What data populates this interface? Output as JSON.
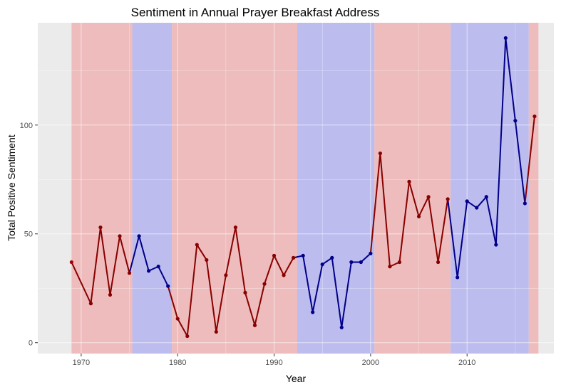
{
  "chart_data": {
    "type": "line",
    "title": "Sentiment in Annual Prayer Breakfast Address",
    "xlabel": "Year",
    "ylabel": "Total Positive Sentiment",
    "xlim": [
      1965.5,
      2019.0
    ],
    "ylim": [
      -5,
      147
    ],
    "x_ticks": [
      1970,
      1980,
      1990,
      2000,
      2010
    ],
    "y_ticks": [
      0,
      50,
      100
    ],
    "grid": true,
    "colors": {
      "panel_background": "#ebebeb",
      "grid_line": "#ffffff",
      "republican_band": "#eebcbc",
      "democratic_band": "#bcbcef",
      "line": "#000000"
    },
    "bands": [
      {
        "party": "republican",
        "start": 1969,
        "end": 1975.3
      },
      {
        "party": "democratic",
        "start": 1975.3,
        "end": 1979.4
      },
      {
        "party": "republican",
        "start": 1979.4,
        "end": 1992.4
      },
      {
        "party": "democratic",
        "start": 1992.4,
        "end": 2000.4
      },
      {
        "party": "republican",
        "start": 2000.4,
        "end": 2008.3
      },
      {
        "party": "democratic",
        "start": 2008.3,
        "end": 2016.4
      },
      {
        "party": "republican",
        "start": 2016.4,
        "end": 2017.4
      }
    ],
    "series": [
      {
        "x": [
          1969,
          1971,
          1972,
          1973,
          1974,
          1975,
          1976,
          1977,
          1978,
          1979,
          1980,
          1981,
          1982,
          1983,
          1984,
          1985,
          1986,
          1987,
          1988,
          1989,
          1990,
          1991,
          1992,
          1993,
          1994,
          1995,
          1996,
          1997,
          1998,
          1999,
          2000,
          2001,
          2002,
          2003,
          2004,
          2005,
          2006,
          2007,
          2008,
          2009,
          2010,
          2011,
          2012,
          2013,
          2014,
          2015,
          2016,
          2017
        ],
        "values": [
          37,
          18,
          53,
          22,
          49,
          32,
          49,
          33,
          35,
          26,
          11,
          3,
          45,
          38,
          5,
          31,
          53,
          23,
          8,
          27,
          40,
          31,
          39,
          40,
          14,
          36,
          39,
          7,
          37,
          37,
          41,
          87,
          35,
          37,
          74,
          58,
          67,
          37,
          66,
          30,
          65,
          62,
          67,
          45,
          140,
          102,
          64,
          104
        ],
        "point_colors": [
          "#ab0000",
          "#880000",
          "#880000",
          "#880000",
          "#880000",
          "#880000",
          "#000088",
          "#000088",
          "#000088",
          "#000088",
          "#880000",
          "#880000",
          "#880000",
          "#880000",
          "#880000",
          "#880000",
          "#880000",
          "#880000",
          "#880000",
          "#880000",
          "#880000",
          "#880000",
          "#880000",
          "#000088",
          "#000088",
          "#000088",
          "#000088",
          "#000088",
          "#000088",
          "#000088",
          "#000088",
          "#880000",
          "#880000",
          "#880000",
          "#880000",
          "#880000",
          "#880000",
          "#880000",
          "#880000",
          "#000088",
          "#000088",
          "#000088",
          "#000088",
          "#000088",
          "#000088",
          "#000088",
          "#000088",
          "#880000"
        ]
      }
    ]
  }
}
